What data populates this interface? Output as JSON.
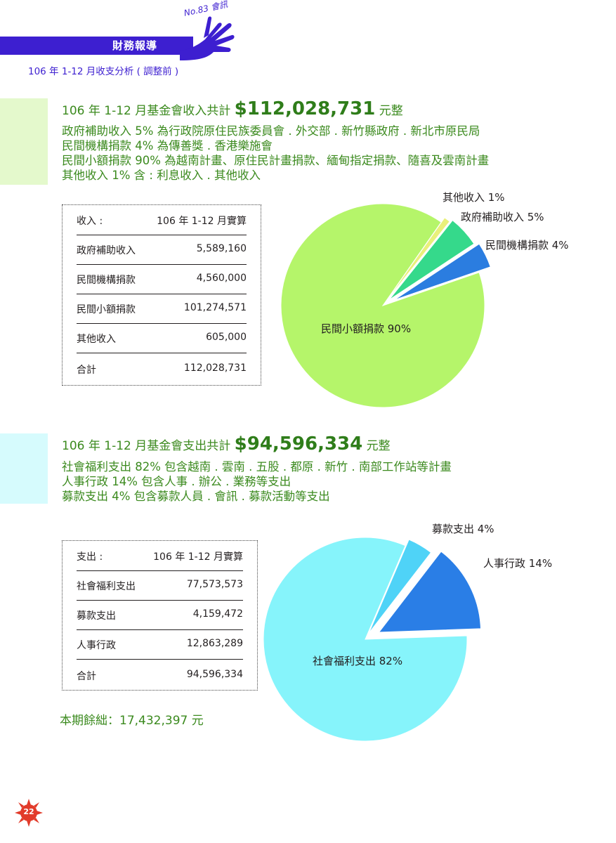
{
  "header": {
    "section_title": "財務報導",
    "issue_label": "No.83 會訊",
    "subtitle": "106 年 1-12 月收支分析 ( 調整前 )",
    "accent_color": "#3d1fd0"
  },
  "income": {
    "headline_prefix": "106 年 1-12 月基金會收入共計",
    "headline_amount": "$112,028,731",
    "headline_suffix": "元整",
    "descriptions": [
      "政府補助收入 5% 為行政院原住民族委員會 . 外交部 . 新竹縣政府 . 新北市原民局",
      "民間機構捐款 4% 為傳善獎 . 香港樂施會",
      "民間小額捐款 90% 為越南計畫、原住民計畫捐款、緬甸指定捐款、隨喜及雲南計畫",
      "其他收入 1% 含 : 利息收入 . 其他收入"
    ],
    "table": {
      "header_label": "收入 :",
      "header_value": "106 年 1-12 月實算",
      "rows": [
        {
          "label": "政府補助收入",
          "value": "5,589,160"
        },
        {
          "label": "民間機構捐款",
          "value": "4,560,000"
        },
        {
          "label": "民間小額捐款",
          "value": "101,274,571"
        },
        {
          "label": "其他收入",
          "value": "605,000"
        }
      ],
      "total_label": "合計",
      "total_value": "112,028,731"
    },
    "pie_labels": {
      "other": "其他收入 1%",
      "government": "政府補助收入 5%",
      "institution": "民間機構捐款 4%",
      "small": "民間小額捐款 90%"
    },
    "colors": {
      "small": "#b5f56a",
      "other": "#e9f07a",
      "government": "#35d98b",
      "institution": "#2b7de0"
    }
  },
  "expense": {
    "headline_prefix": "106 年 1-12 月基金會支出共計",
    "headline_amount": "$94,596,334",
    "headline_suffix": "元整",
    "descriptions": [
      "社會福利支出 82% 包含越南 . 雲南 . 五股 . 都原 . 新竹 . 南部工作站等計畫",
      "人事行政 14% 包含人事 . 辦公 . 業務等支出",
      "募款支出 4% 包含募款人員 . 會訊 . 募款活動等支出"
    ],
    "table": {
      "header_label": "支出 :",
      "header_value": "106 年 1-12 月實算",
      "rows": [
        {
          "label": "社會福利支出",
          "value": "77,573,573"
        },
        {
          "label": "募款支出",
          "value": "4,159,472"
        },
        {
          "label": "人事行政",
          "value": "12,863,289"
        }
      ],
      "total_label": "合計",
      "total_value": "94,596,334"
    },
    "pie_labels": {
      "fundraising": "募款支出 4%",
      "admin": "人事行政 14%",
      "welfare": "社會福利支出 82%"
    },
    "colors": {
      "welfare": "#86f4fb",
      "fundraising": "#4fd3f7",
      "admin": "#2a7ee6"
    }
  },
  "balance": {
    "text": "本期餘絀：17,432,397 元"
  },
  "page_number": "22",
  "chart_data": [
    {
      "type": "pie",
      "categories": [
        "民間小額捐款",
        "其他收入",
        "政府補助收入",
        "民間機構捐款"
      ],
      "values": [
        90,
        1,
        5,
        4
      ],
      "slice_labels": [
        "民間小額捐款 90%",
        "其他收入 1%",
        "政府補助收入 5%",
        "民間機構捐款 4%"
      ]
    },
    {
      "type": "pie",
      "categories": [
        "社會福利支出",
        "募款支出",
        "人事行政"
      ],
      "values": [
        82,
        4,
        14
      ],
      "slice_labels": [
        "社會福利支出 82%",
        "募款支出 4%",
        "人事行政 14%"
      ]
    }
  ]
}
